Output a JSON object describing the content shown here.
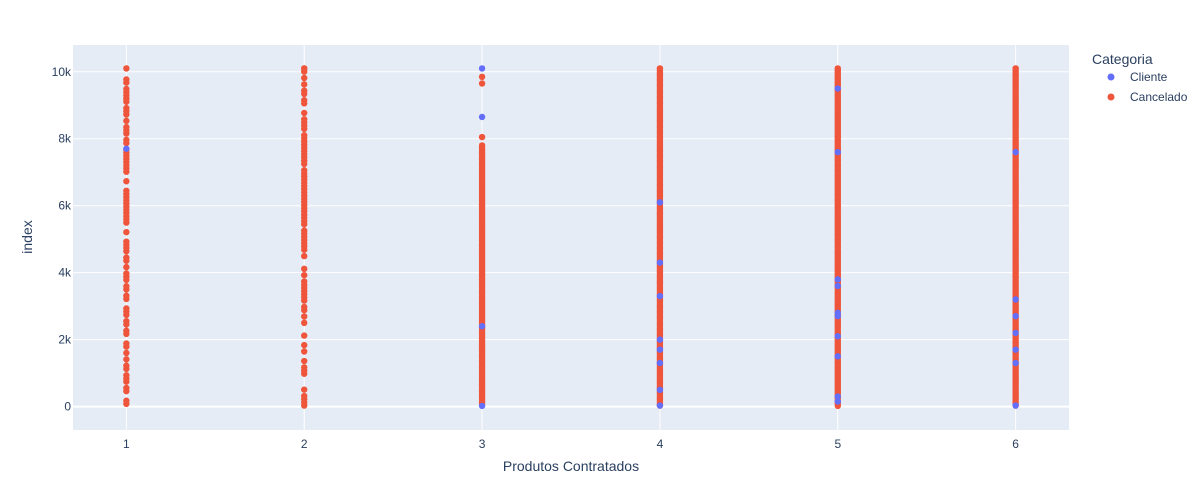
{
  "chart_data": {
    "type": "scatter",
    "xlabel": "Produtos Contratados",
    "ylabel": "index",
    "x_ticks": [
      "1",
      "2",
      "3",
      "4",
      "5",
      "6"
    ],
    "y_ticks": [
      {
        "value": 0,
        "label": "0"
      },
      {
        "value": 2000,
        "label": "2k"
      },
      {
        "value": 4000,
        "label": "4k"
      },
      {
        "value": 6000,
        "label": "6k"
      },
      {
        "value": 8000,
        "label": "8k"
      },
      {
        "value": 10000,
        "label": "10k"
      }
    ],
    "xlim": [
      0.7,
      6.3
    ],
    "ylim": [
      -700,
      10800
    ],
    "grid": true,
    "legend": {
      "title": "Categoria",
      "placement": "top-right",
      "entries": [
        {
          "name": "Cliente",
          "color": "#636efa"
        },
        {
          "name": "Cancelado",
          "color": "#ef553b"
        }
      ]
    },
    "series": [
      {
        "name": "Cancelado",
        "color": "#ef553b",
        "segments": [
          {
            "x": 1,
            "from": 80,
            "to": 10100
          },
          {
            "x": 2,
            "from": 30,
            "to": 10100
          },
          {
            "x": 3,
            "from": 50,
            "to": 7800
          },
          {
            "x": 4,
            "from": 30,
            "to": 10100
          },
          {
            "x": 5,
            "from": 20,
            "to": 10100
          },
          {
            "x": 6,
            "from": 30,
            "to": 10100
          }
        ]
      },
      {
        "name": "Cliente",
        "color": "#636efa",
        "points": [
          {
            "x": 1,
            "y": 7700
          },
          {
            "x": 3,
            "y": 10100
          },
          {
            "x": 3,
            "y": 8650
          },
          {
            "x": 3,
            "y": 2400
          },
          {
            "x": 3,
            "y": 20
          },
          {
            "x": 4,
            "y": 6100
          },
          {
            "x": 4,
            "y": 4300
          },
          {
            "x": 4,
            "y": 3300
          },
          {
            "x": 4,
            "y": 2000
          },
          {
            "x": 4,
            "y": 1700
          },
          {
            "x": 4,
            "y": 1300
          },
          {
            "x": 4,
            "y": 500
          },
          {
            "x": 4,
            "y": 30
          },
          {
            "x": 5,
            "y": 9500
          },
          {
            "x": 5,
            "y": 7600
          },
          {
            "x": 5,
            "y": 3800
          },
          {
            "x": 5,
            "y": 3600
          },
          {
            "x": 5,
            "y": 2800
          },
          {
            "x": 5,
            "y": 2700
          },
          {
            "x": 5,
            "y": 2100
          },
          {
            "x": 5,
            "y": 1500
          },
          {
            "x": 5,
            "y": 300
          },
          {
            "x": 5,
            "y": 150
          },
          {
            "x": 6,
            "y": 7600
          },
          {
            "x": 6,
            "y": 3200
          },
          {
            "x": 6,
            "y": 2700
          },
          {
            "x": 6,
            "y": 2200
          },
          {
            "x": 6,
            "y": 1700
          },
          {
            "x": 6,
            "y": 1300
          },
          {
            "x": 6,
            "y": 30
          }
        ]
      }
    ]
  }
}
